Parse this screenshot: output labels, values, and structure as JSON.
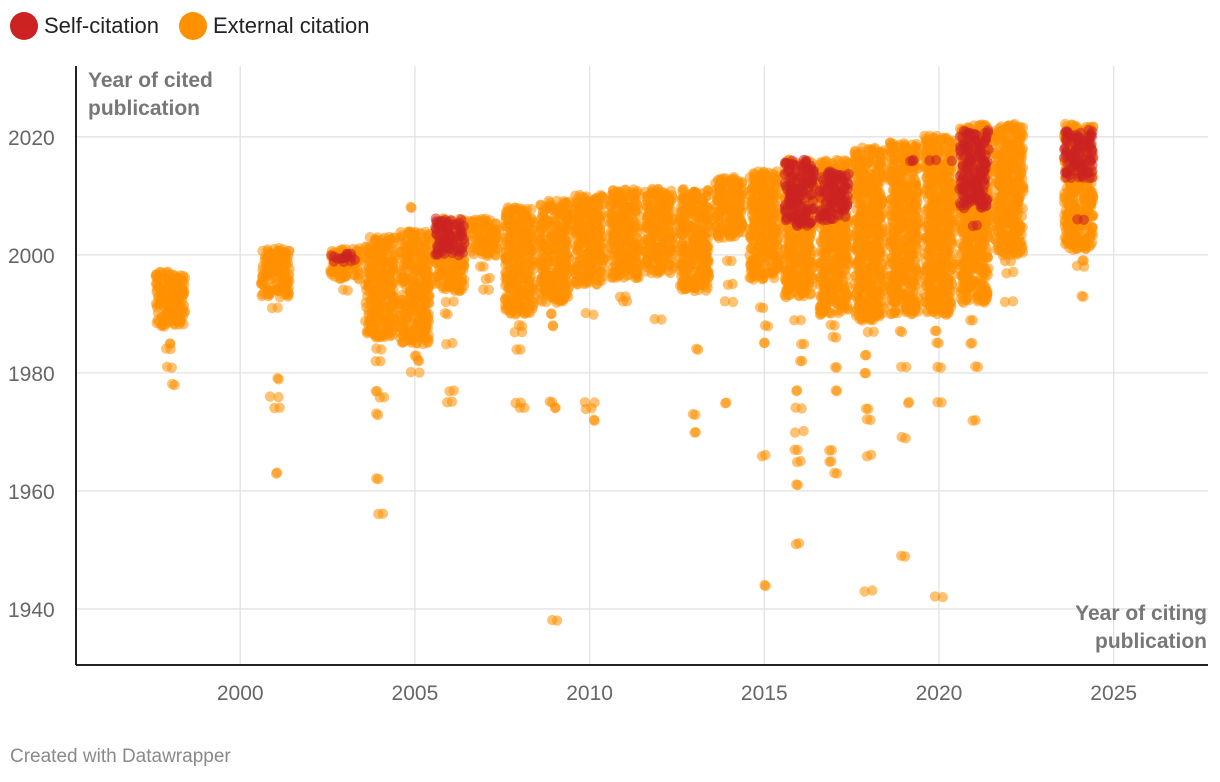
{
  "legend": {
    "self_label": "Self-citation",
    "self_icon": "red-circle-icon",
    "external_label": "External citation",
    "external_icon": "orange-circle-icon"
  },
  "footer": {
    "credit": "Created with Datawrapper"
  },
  "chart_data": {
    "type": "scatter",
    "title": "",
    "ylabel": "Year of cited publication",
    "xlabel": "Year of citing publication",
    "xlim": [
      1995.3,
      2027.7
    ],
    "ylim": [
      1930.5,
      2032
    ],
    "xticks": [
      2000,
      2005,
      2010,
      2015,
      2020,
      2025
    ],
    "yticks": [
      1940,
      1960,
      1980,
      2000,
      2020
    ],
    "grid": true,
    "legend_position": "top-left",
    "colors": {
      "self": "#cc2222",
      "external": "#ff9000"
    },
    "series": [
      {
        "name": "External citation",
        "key": "external",
        "columns": [
          {
            "x": 1998,
            "dense": [
              [
                1988,
                1997
              ]
            ],
            "points": [
              1985,
              1984,
              1981,
              1978
            ]
          },
          {
            "x": 2001,
            "dense": [
              [
                1993,
                2001
              ]
            ],
            "points": [
              1991,
              1979,
              1976,
              1974,
              1963
            ]
          },
          {
            "x": 2003,
            "dense": [
              [
                1996,
                2001
              ]
            ],
            "points": [
              1994
            ]
          },
          {
            "x": 2004,
            "dense": [
              [
                1986,
                2003
              ]
            ],
            "points": [
              1984,
              1982,
              1977,
              1976,
              1973,
              1962,
              1956
            ]
          },
          {
            "x": 2005,
            "dense": [
              [
                1985,
                2004
              ]
            ],
            "points": [
              2008,
              1983,
              1982,
              1980
            ]
          },
          {
            "x": 2006,
            "dense": [
              [
                1994,
                2006
              ]
            ],
            "points": [
              1992,
              1990,
              1985,
              1977,
              1975
            ]
          },
          {
            "x": 2007,
            "dense": [
              [
                2000,
                2006
              ]
            ],
            "points": [
              1998,
              1996,
              1994
            ]
          },
          {
            "x": 2008,
            "dense": [
              [
                1990,
                2008
              ]
            ],
            "points": [
              1988,
              1987,
              1984,
              1975,
              1974
            ]
          },
          {
            "x": 2009,
            "dense": [
              [
                1992,
                2009
              ]
            ],
            "points": [
              1990,
              1988,
              1975,
              1974,
              1938
            ]
          },
          {
            "x": 2010,
            "dense": [
              [
                1995,
                2010
              ]
            ],
            "points": [
              1990,
              1975,
              1974,
              1972
            ]
          },
          {
            "x": 2011,
            "dense": [
              [
                1996,
                2011
              ]
            ],
            "points": [
              1993,
              1992
            ]
          },
          {
            "x": 2012,
            "dense": [
              [
                1997,
                2011
              ]
            ],
            "points": [
              1989
            ]
          },
          {
            "x": 2013,
            "dense": [
              [
                1994,
                2011
              ]
            ],
            "points": [
              1984,
              1973,
              1970
            ]
          },
          {
            "x": 2014,
            "dense": [
              [
                2003,
                2013
              ]
            ],
            "points": [
              1999,
              1995,
              1992,
              1975
            ]
          },
          {
            "x": 2015,
            "dense": [
              [
                1996,
                2014
              ]
            ],
            "points": [
              1991,
              1988,
              1985,
              1966,
              1944
            ]
          },
          {
            "x": 2016,
            "dense": [
              [
                1993,
                2016
              ]
            ],
            "points": [
              1989,
              1985,
              1982,
              1977,
              1974,
              1970,
              1967,
              1965,
              1961,
              1951
            ]
          },
          {
            "x": 2017,
            "dense": [
              [
                1990,
                2016
              ]
            ],
            "points": [
              1988,
              1986,
              1981,
              1977,
              1967,
              1965,
              1963
            ]
          },
          {
            "x": 2018,
            "dense": [
              [
                1989,
                2018
              ]
            ],
            "points": [
              1987,
              1983,
              1980,
              1974,
              1972,
              1966,
              1943
            ]
          },
          {
            "x": 2019,
            "dense": [
              [
                1990,
                2019
              ]
            ],
            "points": [
              1987,
              1981,
              1975,
              1969,
              1949
            ]
          },
          {
            "x": 2020,
            "dense": [
              [
                1990,
                2020
              ]
            ],
            "points": [
              1987,
              1985,
              1981,
              1975,
              1942
            ]
          },
          {
            "x": 2021,
            "dense": [
              [
                1992,
                2022
              ]
            ],
            "points": [
              1989,
              1985,
              1981,
              1972
            ]
          },
          {
            "x": 2022,
            "dense": [
              [
                2000,
                2022
              ]
            ],
            "points": [
              1999,
              1997,
              1992
            ]
          },
          {
            "x": 2024,
            "dense": [
              [
                2001,
                2022
              ]
            ],
            "points": [
              1999,
              1998,
              1993
            ]
          }
        ]
      },
      {
        "name": "Self-citation",
        "key": "self",
        "columns": [
          {
            "x": 2003,
            "dense": [
              [
                1999,
                2000
              ]
            ],
            "points": []
          },
          {
            "x": 2006,
            "dense": [
              [
                2000,
                2006
              ]
            ],
            "points": []
          },
          {
            "x": 2016,
            "dense": [
              [
                2005,
                2016
              ]
            ],
            "points": []
          },
          {
            "x": 2017,
            "dense": [
              [
                2006,
                2014
              ]
            ],
            "points": []
          },
          {
            "x": 2019,
            "dense": [
              [
                2016,
                2016
              ]
            ],
            "points": []
          },
          {
            "x": 2020,
            "dense": [
              [
                2016,
                2016
              ]
            ],
            "points": []
          },
          {
            "x": 2021,
            "dense": [
              [
                2008,
                2021
              ]
            ],
            "points": [
              2005
            ]
          },
          {
            "x": 2024,
            "dense": [
              [
                2013,
                2021
              ]
            ],
            "points": [
              2006
            ]
          }
        ]
      }
    ]
  }
}
